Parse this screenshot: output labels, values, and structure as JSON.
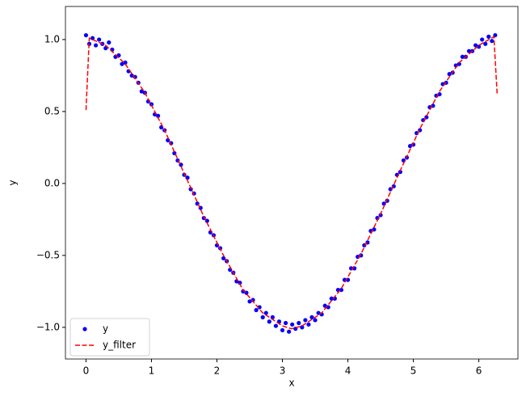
{
  "chart_data": {
    "type": "scatter",
    "xlabel": "x",
    "ylabel": "y",
    "xlim": [
      -0.314,
      6.597
    ],
    "ylim": [
      -1.22,
      1.23
    ],
    "xticks": [
      0,
      1,
      2,
      3,
      4,
      5,
      6
    ],
    "yticks": [
      {
        "value": -1,
        "label": "−1.0"
      },
      {
        "value": -0.5,
        "label": "−0.5"
      },
      {
        "value": 0,
        "label": "0.0"
      },
      {
        "value": 0.5,
        "label": "0.5"
      },
      {
        "value": 1,
        "label": "1.0"
      }
    ],
    "legend": "lower left",
    "series": [
      {
        "name": "y",
        "type": "scatter",
        "color": "#0000ff",
        "x": [
          0,
          0.05,
          0.1,
          0.15,
          0.2,
          0.25,
          0.3,
          0.35,
          0.4,
          0.45,
          0.5,
          0.55,
          0.6,
          0.65,
          0.7,
          0.75,
          0.8,
          0.85,
          0.9,
          0.95,
          1,
          1.05,
          1.1,
          1.15,
          1.2,
          1.25,
          1.3,
          1.35,
          1.4,
          1.45,
          1.5,
          1.55,
          1.6,
          1.65,
          1.7,
          1.75,
          1.8,
          1.85,
          1.9,
          1.95,
          2,
          2.05,
          2.1,
          2.15,
          2.2,
          2.25,
          2.3,
          2.35,
          2.4,
          2.45,
          2.5,
          2.55,
          2.6,
          2.65,
          2.7,
          2.75,
          2.8,
          2.85,
          2.9,
          2.95,
          3,
          3.05,
          3.1,
          3.15,
          3.2,
          3.25,
          3.3,
          3.35,
          3.4,
          3.45,
          3.5,
          3.55,
          3.6,
          3.65,
          3.7,
          3.75,
          3.8,
          3.85,
          3.9,
          3.95,
          4,
          4.05,
          4.1,
          4.15,
          4.2,
          4.25,
          4.3,
          4.35,
          4.4,
          4.45,
          4.5,
          4.55,
          4.6,
          4.65,
          4.7,
          4.75,
          4.8,
          4.85,
          4.9,
          4.95,
          5,
          5.05,
          5.1,
          5.15,
          5.2,
          5.25,
          5.3,
          5.35,
          5.4,
          5.45,
          5.5,
          5.55,
          5.6,
          5.65,
          5.7,
          5.75,
          5.8,
          5.85,
          5.9,
          5.95,
          6,
          6.05,
          6.1,
          6.15,
          6.2,
          6.25
        ],
        "values": [
          1.03,
          0.97,
          1.01,
          0.96,
          1.0,
          0.97,
          0.94,
          0.98,
          0.93,
          0.88,
          0.89,
          0.83,
          0.84,
          0.78,
          0.75,
          0.74,
          0.7,
          0.64,
          0.63,
          0.57,
          0.55,
          0.48,
          0.47,
          0.39,
          0.37,
          0.3,
          0.28,
          0.21,
          0.16,
          0.13,
          0.06,
          0.04,
          -0.04,
          -0.07,
          -0.14,
          -0.17,
          -0.24,
          -0.26,
          -0.34,
          -0.36,
          -0.43,
          -0.45,
          -0.52,
          -0.54,
          -0.6,
          -0.62,
          -0.68,
          -0.69,
          -0.75,
          -0.76,
          -0.82,
          -0.81,
          -0.88,
          -0.86,
          -0.93,
          -0.9,
          -0.96,
          -0.93,
          -0.99,
          -0.96,
          -1.02,
          -0.97,
          -1.03,
          -0.98,
          -1.01,
          -0.97,
          -1.0,
          -0.95,
          -0.98,
          -0.93,
          -0.95,
          -0.9,
          -0.91,
          -0.85,
          -0.86,
          -0.8,
          -0.8,
          -0.74,
          -0.74,
          -0.67,
          -0.67,
          -0.59,
          -0.59,
          -0.51,
          -0.5,
          -0.43,
          -0.41,
          -0.33,
          -0.32,
          -0.24,
          -0.22,
          -0.14,
          -0.12,
          -0.04,
          -0.02,
          0.06,
          0.08,
          0.16,
          0.18,
          0.26,
          0.27,
          0.35,
          0.37,
          0.44,
          0.46,
          0.53,
          0.54,
          0.61,
          0.62,
          0.69,
          0.7,
          0.76,
          0.77,
          0.82,
          0.83,
          0.88,
          0.88,
          0.92,
          0.92,
          0.96,
          0.95,
          1.0,
          0.97,
          1.02,
          0.99,
          1.03
        ]
      },
      {
        "name": "y_filter",
        "type": "line",
        "color": "#ff0000",
        "x": [
          0,
          0.05,
          0.3,
          0.6,
          0.9,
          1.2,
          1.5,
          1.8,
          2.1,
          2.4,
          2.7,
          3.0,
          3.14,
          3.3,
          3.6,
          3.9,
          4.2,
          4.5,
          4.8,
          5.1,
          5.4,
          5.7,
          6.0,
          6.23,
          6.28
        ],
        "values": [
          0.51,
          1.01,
          0.96,
          0.83,
          0.63,
          0.37,
          0.07,
          -0.23,
          -0.5,
          -0.74,
          -0.9,
          -0.99,
          -1.01,
          -0.99,
          -0.9,
          -0.73,
          -0.49,
          -0.21,
          0.09,
          0.38,
          0.64,
          0.84,
          0.96,
          1.02,
          0.62
        ]
      }
    ]
  }
}
